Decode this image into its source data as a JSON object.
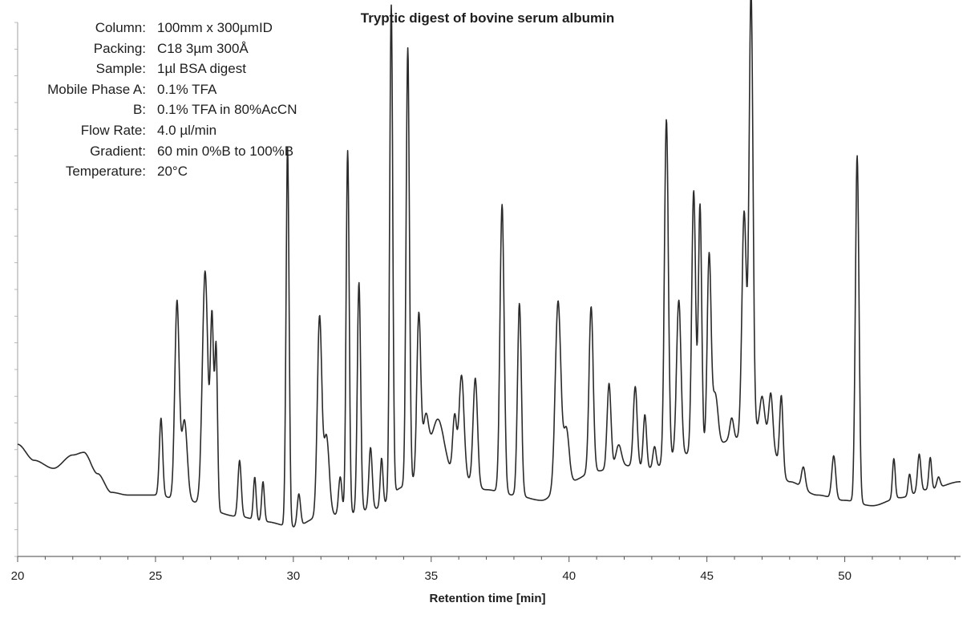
{
  "chart_data": {
    "type": "line",
    "title": "Tryptic digest of bovine serum albumin",
    "xlabel": "Retention time [min]",
    "ylabel": "",
    "xlim": [
      20,
      54.2
    ],
    "ylim": [
      0,
      100
    ],
    "xticks": [
      20,
      25,
      30,
      35,
      40,
      45,
      50
    ],
    "grid": false,
    "conditions": [
      {
        "label": "Column:",
        "value": "100mm x 300µmID"
      },
      {
        "label": "Packing:",
        "value": "C18 3µm 300Å"
      },
      {
        "label": "Sample:",
        "value": "1µl BSA digest"
      },
      {
        "label": "Mobile Phase A:",
        "value": "0.1% TFA"
      },
      {
        "label": "B:",
        "value": "0.1% TFA in 80%AcCN"
      },
      {
        "label": "Flow Rate:",
        "value": "4.0 µl/min"
      },
      {
        "label": "Gradient:",
        "value": "60 min 0%B to 100%B"
      },
      {
        "label": "Temperature:",
        "value": "20°C"
      }
    ],
    "baseline": [
      [
        20,
        21
      ],
      [
        20.6,
        18
      ],
      [
        21.3,
        16.5
      ],
      [
        22.0,
        19
      ],
      [
        22.4,
        19.5
      ],
      [
        22.9,
        15.5
      ],
      [
        23.4,
        12
      ],
      [
        24.0,
        11.5
      ],
      [
        25.0,
        11.5
      ],
      [
        26.0,
        10.5
      ],
      [
        28.0,
        7.5
      ],
      [
        29.0,
        6.5
      ],
      [
        30.0,
        5.5
      ],
      [
        31.0,
        7.5
      ],
      [
        32.0,
        8
      ],
      [
        33.0,
        9
      ],
      [
        34.0,
        13
      ],
      [
        35.0,
        17
      ],
      [
        36.0,
        15
      ],
      [
        37.0,
        12.5
      ],
      [
        38.0,
        11.5
      ],
      [
        39.0,
        10.5
      ],
      [
        40.0,
        14
      ],
      [
        41.0,
        16
      ],
      [
        42.0,
        17
      ],
      [
        43.0,
        16.5
      ],
      [
        44.0,
        19
      ],
      [
        45.0,
        20
      ],
      [
        46.0,
        22
      ],
      [
        47.0,
        24
      ],
      [
        48.0,
        14
      ],
      [
        49.0,
        11.5
      ],
      [
        50.0,
        10.5
      ],
      [
        51.0,
        9.5
      ],
      [
        52.0,
        11
      ],
      [
        53.0,
        12.5
      ],
      [
        54.2,
        14
      ]
    ],
    "peaks": [
      {
        "t": 25.2,
        "h": 14.5,
        "w": 0.06
      },
      {
        "t": 25.78,
        "h": 37,
        "w": 0.08
      },
      {
        "t": 26.05,
        "h": 15,
        "w": 0.1
      },
      {
        "t": 26.8,
        "h": 44,
        "w": 0.1
      },
      {
        "t": 27.05,
        "h": 35,
        "w": 0.06
      },
      {
        "t": 27.2,
        "h": 30,
        "w": 0.05
      },
      {
        "t": 28.05,
        "h": 10.5,
        "w": 0.06
      },
      {
        "t": 28.6,
        "h": 8,
        "w": 0.05
      },
      {
        "t": 28.9,
        "h": 7.5,
        "w": 0.05
      },
      {
        "t": 29.79,
        "h": 71,
        "w": 0.055
      },
      {
        "t": 30.2,
        "h": 6,
        "w": 0.06
      },
      {
        "t": 30.95,
        "h": 37,
        "w": 0.08
      },
      {
        "t": 31.2,
        "h": 15,
        "w": 0.1
      },
      {
        "t": 31.7,
        "h": 7,
        "w": 0.06
      },
      {
        "t": 31.97,
        "h": 68,
        "w": 0.055
      },
      {
        "t": 32.38,
        "h": 43,
        "w": 0.06
      },
      {
        "t": 32.8,
        "h": 11.5,
        "w": 0.06
      },
      {
        "t": 33.2,
        "h": 9,
        "w": 0.05
      },
      {
        "t": 33.55,
        "h": 92,
        "w": 0.055
      },
      {
        "t": 34.15,
        "h": 82,
        "w": 0.06
      },
      {
        "t": 34.55,
        "h": 30,
        "w": 0.07
      },
      {
        "t": 34.8,
        "h": 9,
        "w": 0.1
      },
      {
        "t": 35.25,
        "h": 9,
        "w": 0.22
      },
      {
        "t": 35.85,
        "h": 11,
        "w": 0.07
      },
      {
        "t": 36.1,
        "h": 19,
        "w": 0.09
      },
      {
        "t": 36.6,
        "h": 20,
        "w": 0.08
      },
      {
        "t": 37.57,
        "h": 54,
        "w": 0.075
      },
      {
        "t": 38.2,
        "h": 36,
        "w": 0.07
      },
      {
        "t": 39.6,
        "h": 35,
        "w": 0.1
      },
      {
        "t": 39.9,
        "h": 10,
        "w": 0.1
      },
      {
        "t": 40.8,
        "h": 31,
        "w": 0.075
      },
      {
        "t": 41.45,
        "h": 16,
        "w": 0.07
      },
      {
        "t": 41.8,
        "h": 4,
        "w": 0.1
      },
      {
        "t": 42.4,
        "h": 15,
        "w": 0.07
      },
      {
        "t": 42.75,
        "h": 10,
        "w": 0.06
      },
      {
        "t": 43.1,
        "h": 4,
        "w": 0.06
      },
      {
        "t": 43.53,
        "h": 64,
        "w": 0.07
      },
      {
        "t": 43.98,
        "h": 29,
        "w": 0.08
      },
      {
        "t": 44.52,
        "h": 49,
        "w": 0.07
      },
      {
        "t": 44.75,
        "h": 46,
        "w": 0.06
      },
      {
        "t": 45.08,
        "h": 36,
        "w": 0.07
      },
      {
        "t": 45.3,
        "h": 10,
        "w": 0.1
      },
      {
        "t": 45.9,
        "h": 4,
        "w": 0.07
      },
      {
        "t": 46.35,
        "h": 42,
        "w": 0.08
      },
      {
        "t": 46.6,
        "h": 83,
        "w": 0.07
      },
      {
        "t": 47.0,
        "h": 6,
        "w": 0.08
      },
      {
        "t": 47.32,
        "h": 9,
        "w": 0.07
      },
      {
        "t": 47.7,
        "h": 14,
        "w": 0.06
      },
      {
        "t": 48.5,
        "h": 4,
        "w": 0.07
      },
      {
        "t": 49.6,
        "h": 8,
        "w": 0.07
      },
      {
        "t": 50.45,
        "h": 65,
        "w": 0.065
      },
      {
        "t": 51.78,
        "h": 7.5,
        "w": 0.05
      },
      {
        "t": 52.35,
        "h": 4,
        "w": 0.05
      },
      {
        "t": 52.7,
        "h": 7,
        "w": 0.06
      },
      {
        "t": 53.1,
        "h": 6,
        "w": 0.05
      },
      {
        "t": 53.4,
        "h": 2,
        "w": 0.06
      }
    ]
  }
}
